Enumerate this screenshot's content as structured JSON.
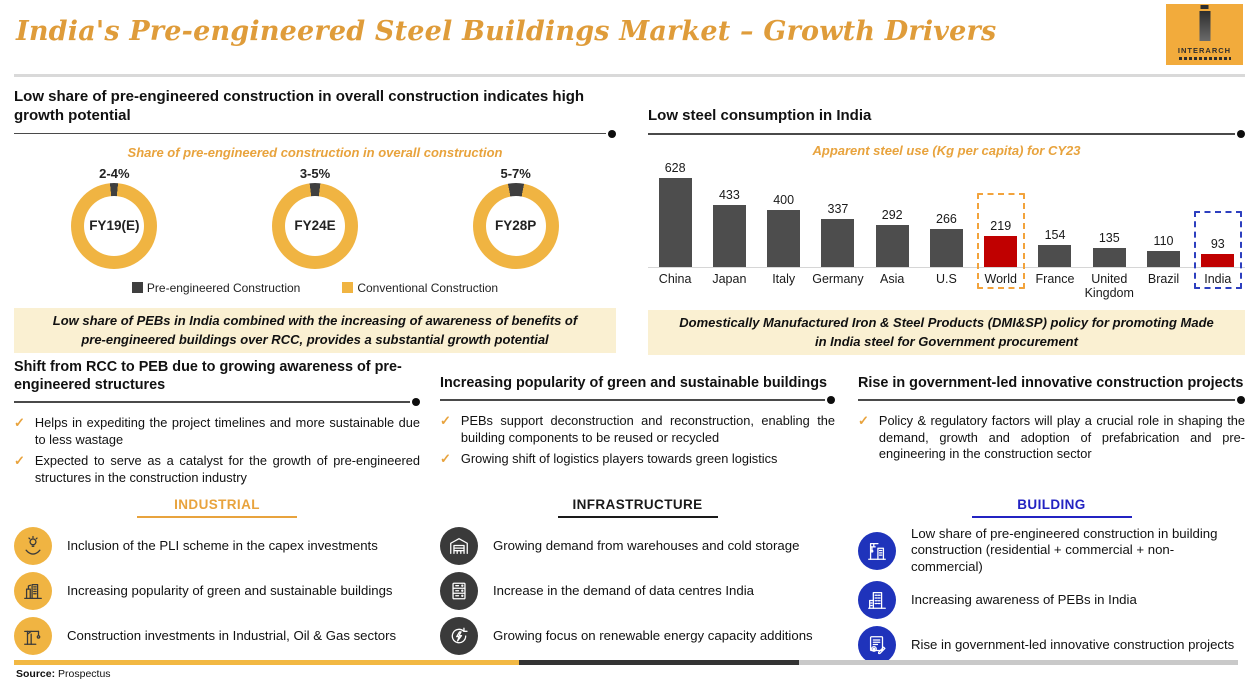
{
  "colors": {
    "title_orange": "#DF9C3A",
    "accent_yellow": "#F0B442",
    "dark_slice": "#3F3F3F",
    "bar_gray": "#4D4D4D",
    "bar_red": "#C00000",
    "industrial_orange": "#E8A33D",
    "infrastructure_dark": "#1A1A1A",
    "building_blue": "#2323C2",
    "icon_bg_orange": "#F0B442",
    "icon_bg_dark": "#3A3A3A",
    "icon_bg_blue": "#1F33BB",
    "cream": "#FAF0D2",
    "footer_orange": "#F2B843",
    "footer_dark": "#333333",
    "footer_gray": "#C9C9C9"
  },
  "header": {
    "title": "India's Pre-engineered Steel Buildings Market – Growth Drivers",
    "logo_text": "INTERARCH"
  },
  "panels": {
    "pre_engineered": {
      "heading": "Low share of pre-engineered construction in overall construction indicates high growth potential",
      "note": "Low share of PEBs in India combined with the increasing of awareness of benefits of pre-engineered buildings over RCC, provides a substantial growth potential"
    },
    "steel_consumption": {
      "heading": "Low steel consumption in India",
      "note": "Domestically Manufactured Iron & Steel Products (DMI&SP) policy for promoting Made in India steel for Government procurement"
    }
  },
  "chart_data": [
    {
      "type": "donut",
      "title": "Share of pre-engineered construction in overall construction",
      "legend": [
        {
          "label": "Pre-engineered Construction",
          "color": "#3F3F3F"
        },
        {
          "label": "Conventional Construction",
          "color": "#F0B442"
        }
      ],
      "donuts": [
        {
          "period": "FY19(E)",
          "share_label": "2-4%",
          "pre_engineered_pct": 3,
          "conventional_pct": 97
        },
        {
          "period": "FY24E",
          "share_label": "3-5%",
          "pre_engineered_pct": 4,
          "conventional_pct": 96
        },
        {
          "period": "FY28P",
          "share_label": "5-7%",
          "pre_engineered_pct": 6,
          "conventional_pct": 94
        }
      ]
    },
    {
      "type": "bar",
      "title": "Apparent steel use (Kg per capita) for CY23",
      "categories": [
        "China",
        "Japan",
        "Italy",
        "Germany",
        "Asia",
        "U.S",
        "World",
        "France",
        "United Kingdom",
        "Brazil",
        "India"
      ],
      "values": [
        628,
        433,
        400,
        337,
        292,
        266,
        219,
        154,
        135,
        110,
        93
      ],
      "ylim": [
        0,
        650
      ],
      "grid": false,
      "bar_color_default": "#4D4D4D",
      "bar_color_highlight": "#C00000",
      "highlights": [
        {
          "category": "World",
          "box_color": "#F2A33C"
        },
        {
          "category": "India",
          "box_color": "#2D3FBF"
        }
      ]
    }
  ],
  "driver_columns": [
    {
      "heading": "Shift from RCC to PEB due to growing awareness of pre-engineered structures",
      "bullets": [
        "Helps in expediting the project timelines and more sustainable due to less wastage",
        "Expected to serve as a catalyst for the growth of pre-engineered structures in the construction industry"
      ]
    },
    {
      "heading": "Increasing popularity of green and sustainable buildings",
      "bullets": [
        "PEBs support deconstruction and reconstruction, enabling the building components to be reused or recycled",
        "Growing shift of logistics players towards green logistics"
      ]
    },
    {
      "heading": "Rise in government-led innovative construction projects",
      "bullets": [
        "Policy & regulatory factors will play a crucial role in shaping the demand, growth and adoption of prefabrication and pre-engineering in the construction sector"
      ]
    }
  ],
  "bottom_sections": [
    {
      "heading": "INDUSTRIAL",
      "heading_color": "#E8A33D",
      "icon_bg": "#F0B442",
      "icon_fg": "#3A3A3A",
      "items": [
        {
          "icon": "bulb-hand-icon",
          "label": "Inclusion of the PLI scheme in the capex investments"
        },
        {
          "icon": "green-building-icon",
          "label": "Increasing popularity of green and sustainable buildings"
        },
        {
          "icon": "crane-icon",
          "label": "Construction investments in Industrial, Oil & Gas sectors"
        }
      ]
    },
    {
      "heading": "INFRASTRUCTURE",
      "heading_color": "#1A1A1A",
      "icon_bg": "#3A3A3A",
      "icon_fg": "#FFFFFF",
      "items": [
        {
          "icon": "warehouse-icon",
          "label": "Growing demand from warehouses and cold storage"
        },
        {
          "icon": "data-center-icon",
          "label": "Increase in the demand of data centres India"
        },
        {
          "icon": "renewable-energy-icon",
          "label": "Growing focus on renewable energy capacity additions"
        }
      ]
    },
    {
      "heading": "BUILDING",
      "heading_color": "#2323C2",
      "icon_bg": "#1F33BB",
      "icon_fg": "#FFFFFF",
      "items": [
        {
          "icon": "construction-crane-icon",
          "label": "Low share of pre-engineered construction in building construction (residential + commercial + non-commercial)"
        },
        {
          "icon": "building-icon",
          "label": "Increasing awareness of PEBs in India"
        },
        {
          "icon": "blueprint-icon",
          "label": "Rise in government-led innovative construction projects"
        }
      ]
    }
  ],
  "footer": {
    "source_label": "Source:",
    "source_value": "Prospectus"
  }
}
